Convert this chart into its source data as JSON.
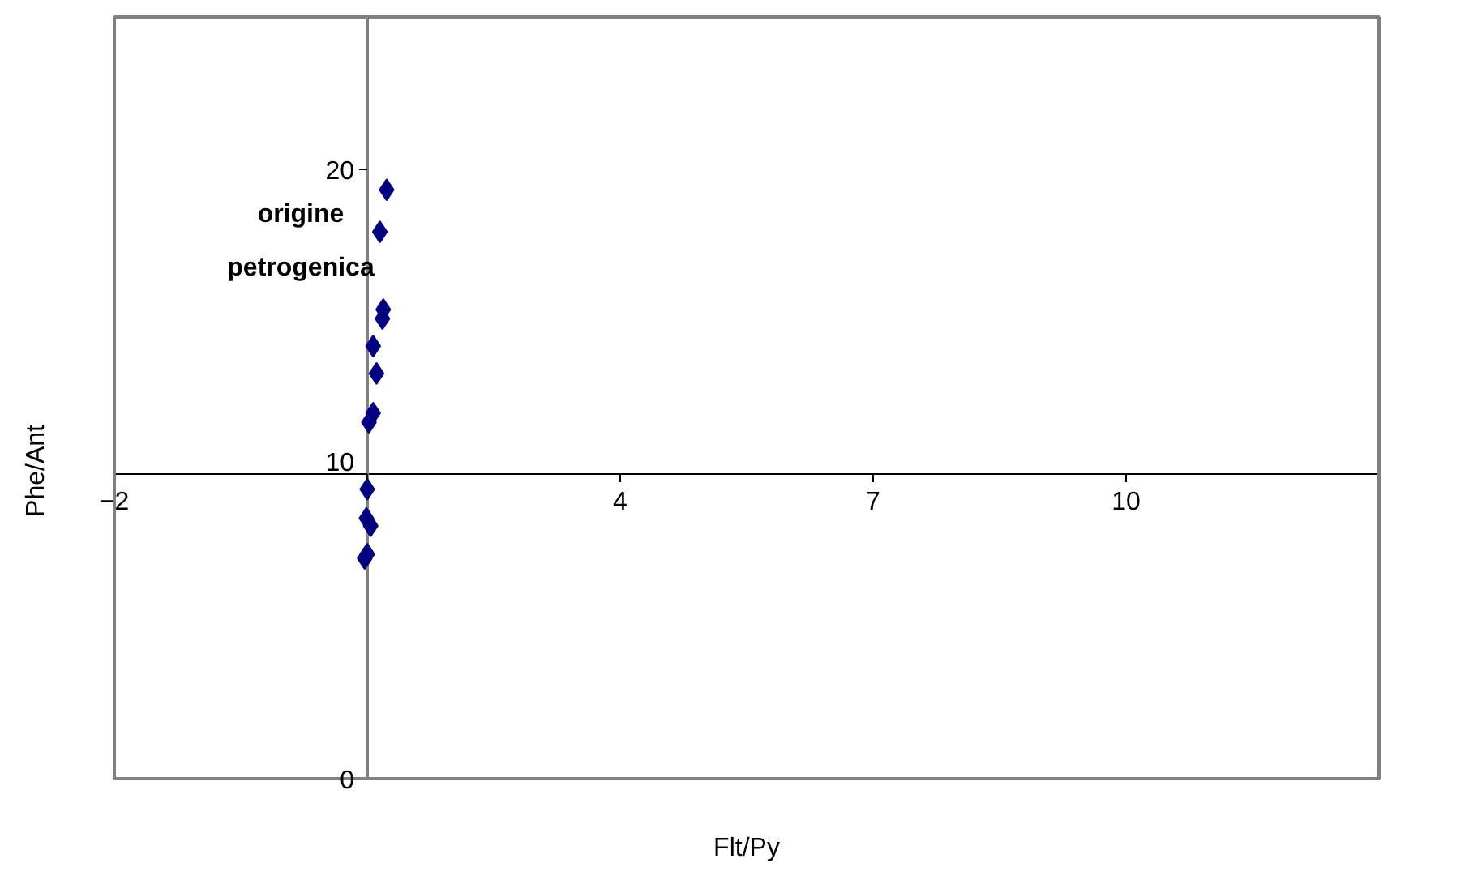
{
  "chart_data": {
    "type": "scatter",
    "xlabel": "Flt/Py",
    "ylabel": "Phe/Ant",
    "annotations": [
      "origine petrogenica"
    ],
    "x": [
      1.23,
      1.15,
      1.19,
      1.18,
      1.07,
      1.11,
      1.07,
      1.02,
      1.0,
      0.99,
      1.04,
      0.97,
      1.0
    ],
    "values": [
      19.33,
      17.95,
      15.4,
      15.1,
      14.2,
      13.3,
      12.0,
      11.7,
      9.5,
      8.55,
      8.3,
      7.23,
      7.37
    ],
    "color": "#000080",
    "marker": "diamond",
    "xlim": [
      -2,
      13
    ],
    "xticks": [
      -2,
      {
        "value": 1,
        "label": null
      },
      4,
      7,
      10
    ],
    "ylim": [
      0,
      25
    ],
    "yticks": [
      0,
      10,
      20
    ],
    "grid": false
  }
}
